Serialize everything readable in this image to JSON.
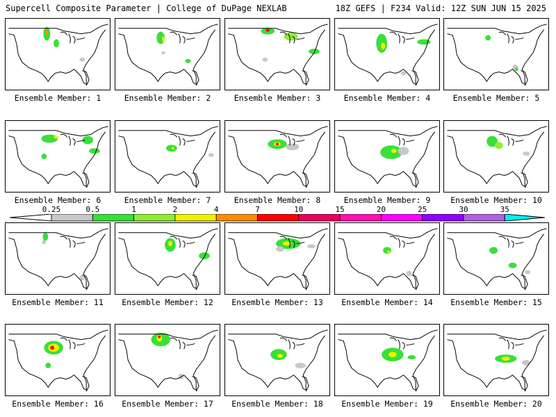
{
  "header": {
    "title": "Supercell Composite Parameter | College of DuPage NEXLAB",
    "run_info": "18Z GEFS | F234 Valid: 12Z SUN JUN 15 2025"
  },
  "colorbar": {
    "labels": [
      "0.25",
      "0.5",
      "1",
      "2",
      "4",
      "7",
      "10",
      "15",
      "20",
      "25",
      "30",
      "35"
    ],
    "colors": [
      "#c8c8c8",
      "#38e038",
      "#90ee30",
      "#f0f000",
      "#ff8c00",
      "#ff0000",
      "#e8005a",
      "#ff10b0",
      "#ff00ff",
      "#9000ff",
      "#b060e0",
      "#00f0f0"
    ]
  },
  "members": [
    {
      "label": "Ensemble Member: 1"
    },
    {
      "label": "Ensemble Member: 2"
    },
    {
      "label": "Ensemble Member: 3"
    },
    {
      "label": "Ensemble Member: 4"
    },
    {
      "label": "Ensemble Member: 5"
    },
    {
      "label": "Ensemble Member: 6"
    },
    {
      "label": "Ensemble Member: 7"
    },
    {
      "label": "Ensemble Member: 8"
    },
    {
      "label": "Ensemble Member: 9"
    },
    {
      "label": "Ensemble Member: 10"
    },
    {
      "label": "Ensemble Member: 11"
    },
    {
      "label": "Ensemble Member: 12"
    },
    {
      "label": "Ensemble Member: 13"
    },
    {
      "label": "Ensemble Member: 14"
    },
    {
      "label": "Ensemble Member: 15"
    },
    {
      "label": "Ensemble Member: 16"
    },
    {
      "label": "Ensemble Member: 17"
    },
    {
      "label": "Ensemble Member: 18"
    },
    {
      "label": "Ensemble Member: 19"
    },
    {
      "label": "Ensemble Member: 20"
    }
  ]
}
